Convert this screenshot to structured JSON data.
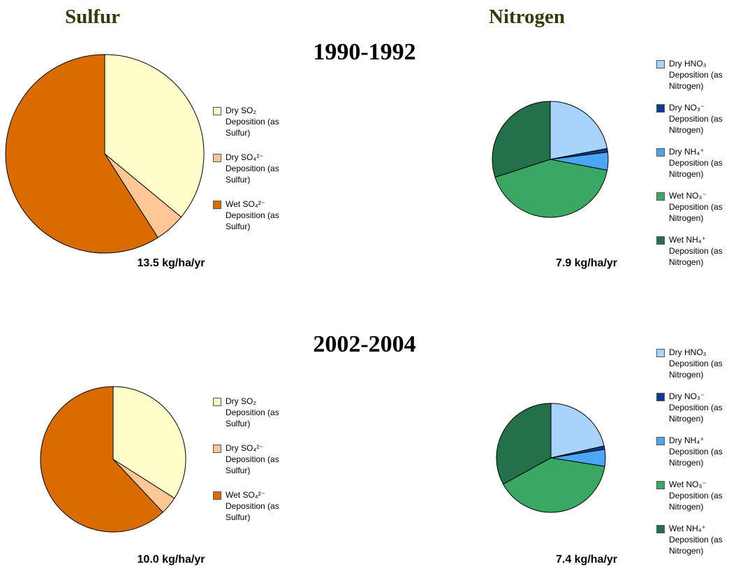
{
  "headings": {
    "left": "Sulfur",
    "right": "Nitrogen"
  },
  "periods": [
    "1990-1992",
    "2002-2004"
  ],
  "chart_data": [
    {
      "type": "pie",
      "annotation": "13.5 kg/ha/yr",
      "categories": [
        "Dry SO₂ Deposition (as Sulfur)",
        "Dry SO₄²⁻ Deposition (as Sulfur)",
        "Wet SO₄²⁻ Deposition (as Sulfur)"
      ],
      "values": [
        36,
        5,
        59
      ],
      "colors": [
        "#ffffcc",
        "#fdc895",
        "#d96b00"
      ]
    },
    {
      "type": "pie",
      "annotation": "7.9 kg/ha/yr",
      "categories": [
        "Dry HNO₃ Deposition (as Nitrogen)",
        "Dry NO₃⁻ Deposition (as Nitrogen)",
        "Dry NH₄⁺ Deposition (as Nitrogen)",
        "Wet NO₃⁻ Deposition (as Nitrogen)",
        "Wet NH₄⁺ Deposition (as Nitrogen)"
      ],
      "values": [
        22,
        1,
        5,
        42,
        30
      ],
      "colors": [
        "#a8d3fb",
        "#0b3d8c",
        "#4da6f5",
        "#3aa865",
        "#24704a"
      ]
    },
    {
      "type": "pie",
      "annotation": "10.0 kg/ha/yr",
      "categories": [
        "Dry SO₂ Deposition (as Sulfur)",
        "Dry SO₄²⁻ Deposition (as Sulfur)",
        "Wet SO₄²⁻ Deposition (as Sulfur)"
      ],
      "values": [
        34,
        4,
        62
      ],
      "colors": [
        "#ffffcc",
        "#fdc895",
        "#d96b00"
      ]
    },
    {
      "type": "pie",
      "annotation": "7.4 kg/ha/yr",
      "categories": [
        "Dry HNO₃ Deposition (as Nitrogen)",
        "Dry NO₃⁻ Deposition (as Nitrogen)",
        "Dry NH₄⁺ Deposition (as Nitrogen)",
        "Wet NO₃⁻ Deposition (as Nitrogen)",
        "Wet NH₄⁺ Deposition (as Nitrogen)"
      ],
      "values": [
        21.5,
        1,
        5,
        39.5,
        33
      ],
      "colors": [
        "#a8d3fb",
        "#0b3d8c",
        "#4da6f5",
        "#3aa865",
        "#24704a"
      ]
    }
  ]
}
